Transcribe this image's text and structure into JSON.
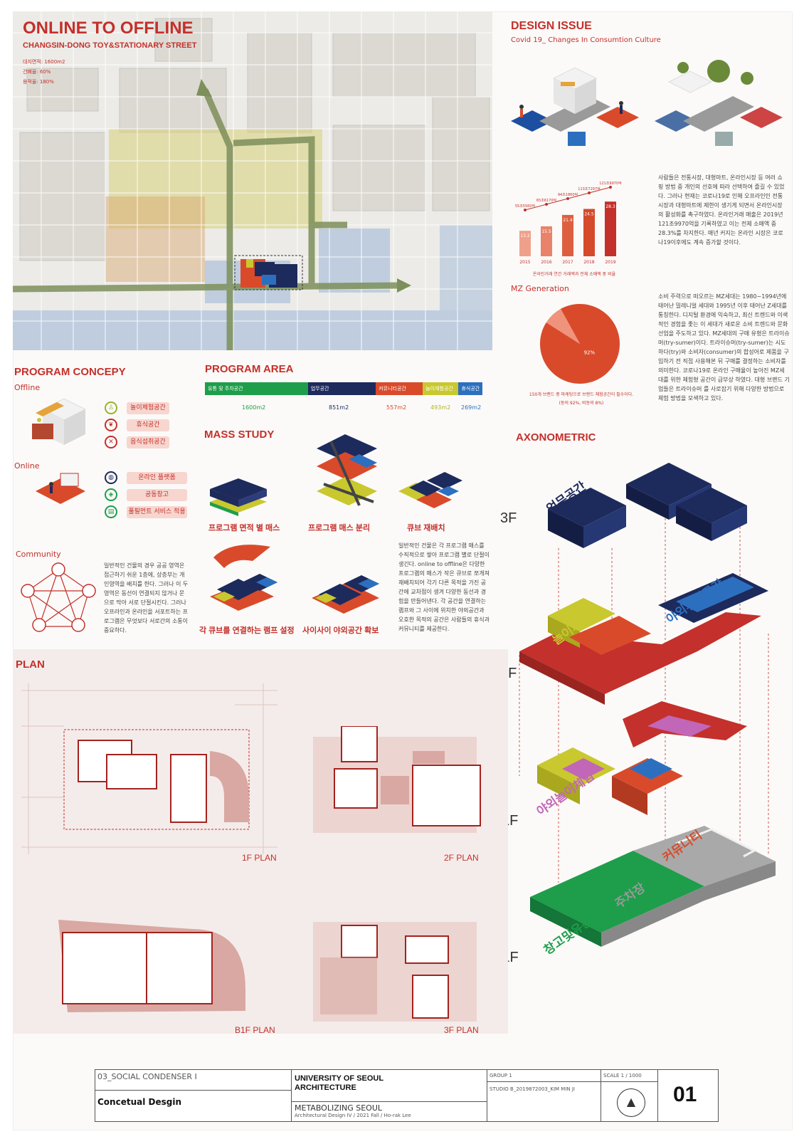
{
  "header": {
    "title": "ONLINE TO OFFLINE",
    "subtitle": "CHANGSIN-DONG TOY&STATIONARY STREET",
    "stats": [
      "대지면적: 1600m2",
      "건폐율: 60%",
      "용적율: 180%"
    ]
  },
  "design_issue": {
    "title": "DESIGN ISSUE",
    "subtitle": "Covid 19_ Changes In Consumtion Culture",
    "para1": "사람들은 전통시장, 대형마트, 온라인시장 등 여러 쇼핑 방법 중 개인의 선호에 따라 선택하여 즐길 수 있었다. 그러나 현재는 코로나19로 인해 오프라인인 전통시장과 대형마트에 제한이 생기게 되면서 온라인시장의 활성화를 촉구하였다. 온라인거래 매출은 2019년 121조9970억을 기록하였고 이는 전체 소매액 중 28.3%를 차지한다. 매년 커지는 온라인 시장은 코로나19이후에도 계속 증가할 것이다.",
    "mz_title": "MZ Generation",
    "para2": "소비 주력으로 떠오르는 MZ세대는 1980~1994년에 태어난 밀레니얼 세대와 1995년 이후 태어난 Z세대를 통칭한다. 디지털 환경에 익숙하고, 최신 트렌드와 이색적인 경험을 좇는 이 세대가 새로운 소비 트렌드와 문화선업을 주도하고 있다. MZ세대의 구매 유형은 트라이슈머(try-sumer)이다. 트라이슈머(try-sumer)는 시도하다(try)와 소비자(consumer)의 합성어로 제품을 구입하기 전 직접 사용해본 뒤 구매를 결정하는 소비자를 의미한다. 코로나19로 온라인 구매율이 높아진 MZ세대를 위한 체험형 공간이 급부상 하였다. 대형 브랜드 기업들은 트라이슈머 를 사로잡기 위해 다양한 방법으로 체험 방법을 모색하고 있다."
  },
  "chart_data": [
    {
      "type": "bar",
      "categories": [
        "2015",
        "2016",
        "2017",
        "2018",
        "2019"
      ],
      "values": [
        13.2,
        15.5,
        21.4,
        24.5,
        28.3
      ],
      "line_labels": [
        "55조5560억",
        "65조6170억",
        "94조1860억",
        "113조7297억",
        "121조9970억"
      ],
      "xlabel": "온라인거래 연간 거래액과 전체 소매액 중 비율"
    },
    {
      "type": "pie",
      "values": [
        92,
        8
      ],
      "data_labels": [
        "92%",
        ""
      ],
      "caption1": "150개 브랜드 중 마케팅으로 브랜드 체험공간이 필수이다.",
      "caption2": "(동의 92%, 비동의 8%)"
    }
  ],
  "program_concept": {
    "title": "PROGRAM CONCEPY",
    "offline": "Offline",
    "online": "Online",
    "community": "Community",
    "offline_items": [
      "놀이체험공간",
      "휴식공간",
      "음식섭취공간"
    ],
    "online_items": [
      "온라인 플랫폼",
      "공동창고",
      "풀필먼트 서비스 적용"
    ],
    "community_text": "일반적인 건물의 경우 공공 영역은 접근하기 쉬운 1층에, 상층부는 개인영역을 배치를 한다. 그러나 이 두 영역은 동선이 연결되지 않거나 문으로 막아 서로 단절시킨다. 그러나 오프라인과 온라인을 서포트하는 프로그램은 무엇보다 서로간의 소통이 중요하다."
  },
  "program_area": {
    "title": "PROGRAM AREA",
    "items": [
      {
        "label": "유통 및 주차공간",
        "value": "1600m2",
        "color": "#1e9e4a"
      },
      {
        "label": "업무공간",
        "value": "851m2",
        "color": "#1d2a5c"
      },
      {
        "label": "커뮤니티공간",
        "value": "557m2",
        "color": "#d94a2b"
      },
      {
        "label": "놀이체험공간",
        "value": "493m2",
        "color": "#c9c82e"
      },
      {
        "label": "휴식공간",
        "value": "269m2",
        "color": "#2d6fbf"
      }
    ]
  },
  "mass_study": {
    "title": "MASS STUDY",
    "labels": [
      "프로그램 면적 별 매스",
      "프로그램 매스 분리",
      "큐브 재배치",
      "각 큐브를 연결하는 램프 설정",
      "사이사이 야외공간 확보"
    ],
    "text": "일반적인 건물은 각 프로그램 매스를 수직적으로 쌓아 프로그램 별로 단절이 생긴다. online to offline은 다양한 프로그램의 매스가 작은 큐브로 쪼개져 재배치되어 각기 다른 목적을 가진 공간에 교차점이 생겨 다양한 동선과 경험을 만들어낸다. 각 공간을 연결하는 램프와 그 사이에 위치한 야외공간과 오호한 목적의 공간은 사람들의 휴식과 커뮤니티를 제공한다."
  },
  "axonometric": {
    "title": "AXONOMETRIC",
    "floors": [
      "3F",
      "2F",
      "1F",
      "B1F"
    ],
    "labels": {
      "office": "업무공간",
      "outdoor_rest": "야외휴식공간",
      "play": "놀이체험",
      "outdoor_play": "야외놀이체험",
      "community": "커뮤니티",
      "parking": "주차장",
      "storage": "창고및유통"
    }
  },
  "plan": {
    "title": "PLAN",
    "labels": [
      "1F PLAN",
      "2F PLAN",
      "B1F PLAN",
      "3F PLAN"
    ]
  },
  "title_block": {
    "project": "03_SOCIAL CONDENSER I",
    "type": "Concetual  Desgin",
    "univ1": "UNIVERSITY OF SEOUL",
    "univ2": "ARCHITECTURE",
    "course": "METABOLIZING SEOUL",
    "course_sub": "Architectural Design IV / 2021 Fall / Ho-rak Lee",
    "group": "GROUP 1",
    "studio": "STUDIO B_2019872003_KIM MIN JI",
    "scale": "SCALE 1 / 1000",
    "sheet": "01"
  },
  "colors": {
    "accent": "#c4302b",
    "navy": "#1d2a5c",
    "green": "#1e9e4a",
    "yellow": "#c9c82e",
    "blue": "#2d6fbf",
    "orange": "#d94a2b",
    "gray": "#a9a9a9"
  }
}
